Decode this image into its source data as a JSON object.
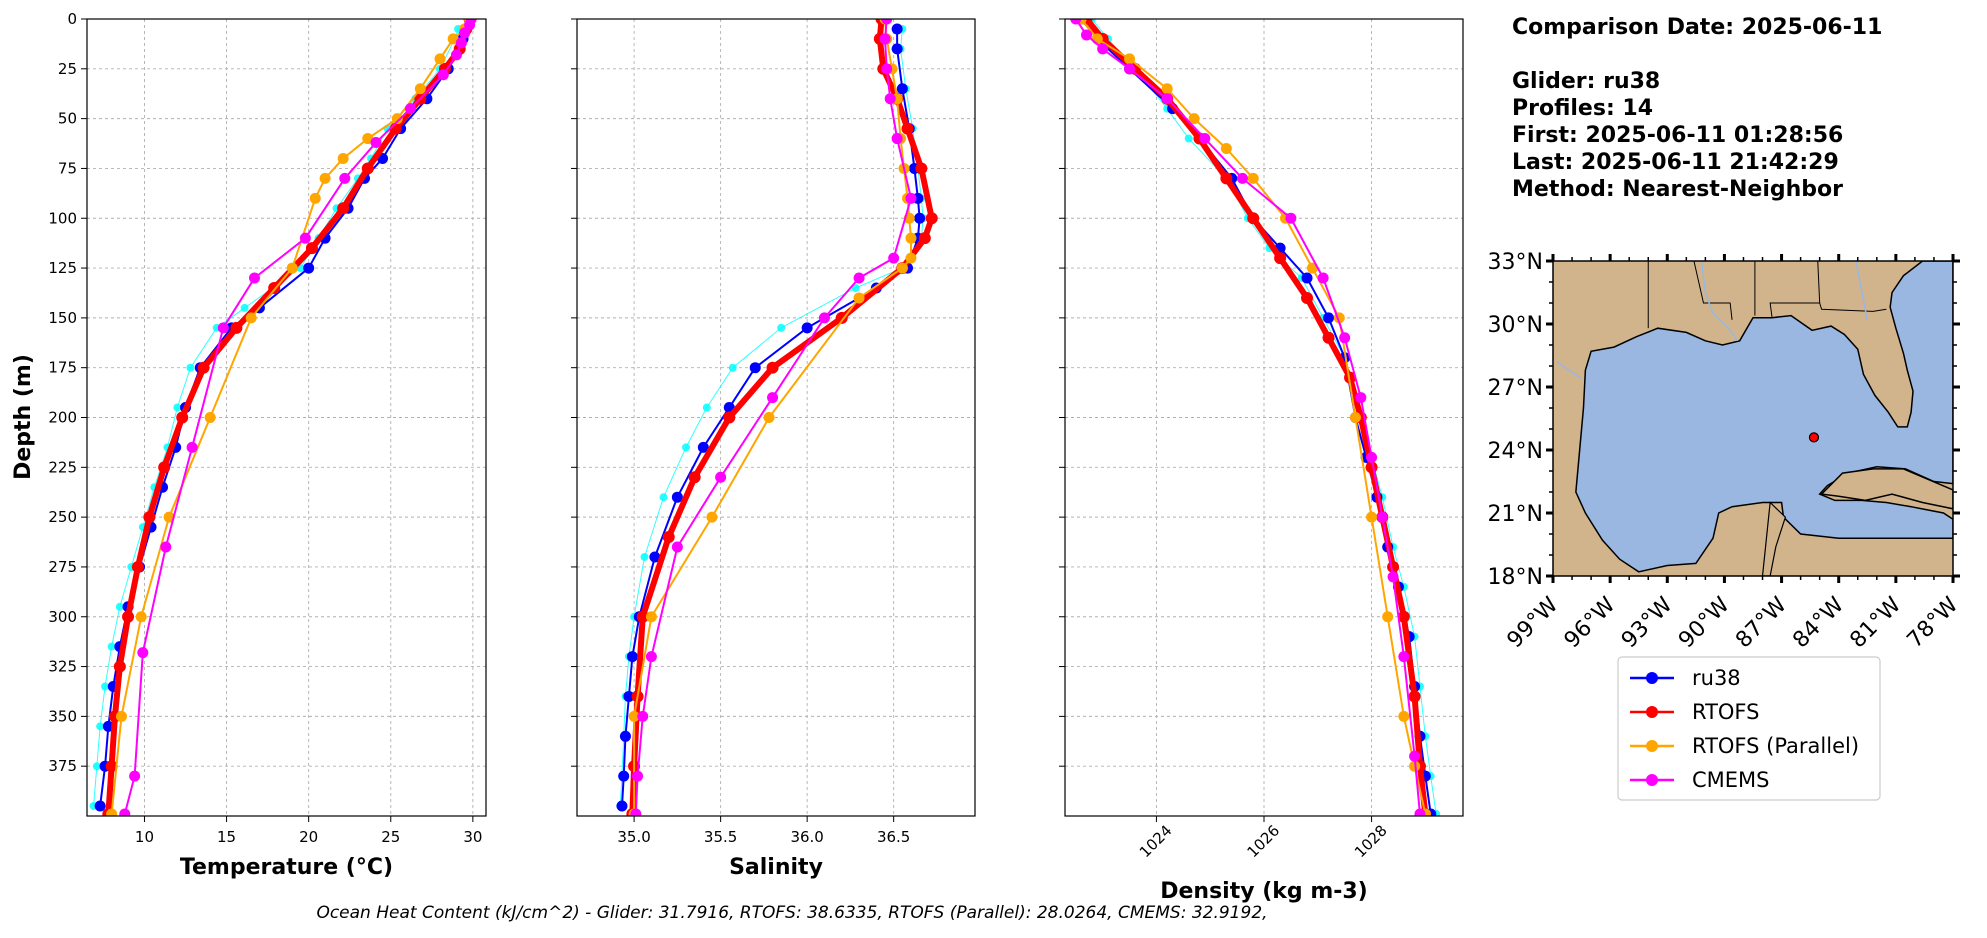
{
  "info": {
    "comparison_date": "Comparison Date: 2025-06-11",
    "glider": "Glider: ru38",
    "profiles": "Profiles: 14",
    "first": "First: 2025-06-11 01:28:56",
    "last": "Last: 2025-06-11 21:42:29",
    "method": "Method: Nearest-Neighbor"
  },
  "footer": "Ocean Heat Content (kJ/cm^2) - Glider: 31.7916,  RTOFS: 38.6335,  RTOFS (Parallel): 28.0264,  CMEMS: 32.9192,",
  "legend": [
    {
      "label": "ru38",
      "color": "#0000ff"
    },
    {
      "label": "RTOFS",
      "color": "#ff0000"
    },
    {
      "label": "RTOFS (Parallel)",
      "color": "#ffa500"
    },
    {
      "label": "CMEMS",
      "color": "#ff00ff"
    }
  ],
  "chart_data": [
    {
      "type": "line",
      "xlabel": "Temperature (°C)",
      "ylabel": "Depth (m)",
      "xlim": [
        6.5,
        30.8
      ],
      "ylim": [
        400,
        0
      ],
      "xticks": [
        "10",
        "15",
        "20",
        "25",
        "30"
      ],
      "yticks": [
        "0",
        "25",
        "50",
        "75",
        "100",
        "125",
        "150",
        "175",
        "200",
        "225",
        "250",
        "275",
        "300",
        "325",
        "350",
        "375"
      ],
      "grid": true,
      "series": [
        {
          "name": "ru38",
          "color": "#0000ff",
          "x": [
            29.6,
            29.4,
            28.5,
            27.2,
            25.6,
            24.5,
            23.4,
            22.4,
            21.0,
            20.0,
            17.0,
            15.3,
            13.4,
            12.5,
            11.9,
            11.1,
            10.4,
            9.7,
            9.0,
            8.5,
            8.1,
            7.8,
            7.6,
            7.3
          ],
          "y": [
            5,
            10,
            25,
            40,
            55,
            70,
            80,
            95,
            110,
            125,
            145,
            155,
            175,
            195,
            215,
            235,
            255,
            275,
            295,
            315,
            335,
            355,
            375,
            395
          ]
        },
        {
          "name": "RTOFS",
          "color": "#ff0000",
          "x": [
            29.8,
            29.6,
            29.2,
            28.3,
            26.8,
            25.3,
            23.6,
            22.1,
            20.2,
            17.9,
            15.6,
            13.6,
            12.3,
            11.2,
            10.3,
            9.6,
            9.0,
            8.5,
            8.2,
            8.0,
            7.8
          ],
          "y": [
            0,
            5,
            15,
            25,
            40,
            55,
            75,
            95,
            115,
            135,
            155,
            175,
            200,
            225,
            250,
            275,
            300,
            325,
            350,
            375,
            399
          ]
        },
        {
          "name": "RTOFS (Parallel)",
          "color": "#ffa500",
          "x": [
            29.8,
            29.5,
            28.8,
            28.0,
            26.8,
            25.4,
            23.6,
            22.1,
            21.0,
            20.4,
            19.0,
            16.5,
            14.0,
            11.5,
            9.8,
            8.6,
            8.0
          ],
          "y": [
            0,
            5,
            10,
            20,
            35,
            50,
            60,
            70,
            80,
            90,
            125,
            150,
            200,
            250,
            300,
            350,
            399
          ]
        },
        {
          "name": "CMEMS",
          "color": "#ff00ff",
          "x": [
            29.9,
            29.8,
            29.5,
            29.3,
            29.0,
            28.2,
            26.2,
            24.1,
            22.2,
            19.8,
            16.7,
            14.8,
            12.9,
            11.3,
            9.9,
            9.4,
            8.8
          ],
          "y": [
            0,
            3,
            7,
            12,
            18,
            28,
            45,
            62,
            80,
            110,
            130,
            155,
            215,
            265,
            318,
            380,
            399
          ]
        },
        {
          "name": "",
          "color": "#00ffff",
          "x": [
            29.1,
            28.9,
            28.0,
            26.5,
            24.8,
            23.8,
            23.0,
            21.7,
            20.6,
            19.5,
            16.1,
            14.4,
            12.8,
            12.0,
            11.4,
            10.6,
            9.9,
            9.2,
            8.5,
            8.0,
            7.6,
            7.3,
            7.1,
            6.9
          ],
          "y": [
            5,
            10,
            25,
            40,
            55,
            70,
            80,
            95,
            110,
            125,
            145,
            155,
            175,
            195,
            215,
            235,
            255,
            275,
            295,
            315,
            335,
            355,
            375,
            395
          ]
        }
      ]
    },
    {
      "type": "line",
      "xlabel": "Salinity",
      "xlim": [
        34.67,
        36.97
      ],
      "ylim": [
        400,
        0
      ],
      "xticks": [
        "35.0",
        "35.5",
        "36.0",
        "36.5"
      ],
      "grid": true,
      "series": [
        {
          "name": "ru38",
          "color": "#0000ff",
          "x": [
            36.52,
            36.52,
            36.55,
            36.59,
            36.62,
            36.64,
            36.65,
            36.64,
            36.58,
            36.4,
            36.0,
            35.7,
            35.55,
            35.4,
            35.25,
            35.12,
            35.03,
            34.99,
            34.97,
            34.95,
            34.94,
            34.93
          ],
          "y": [
            5,
            15,
            35,
            55,
            75,
            90,
            100,
            110,
            125,
            135,
            155,
            175,
            195,
            215,
            240,
            270,
            300,
            320,
            340,
            360,
            380,
            395
          ]
        },
        {
          "name": "RTOFS",
          "color": "#ff0000",
          "x": [
            36.43,
            36.42,
            36.44,
            36.52,
            36.58,
            36.66,
            36.72,
            36.68,
            36.55,
            36.2,
            35.8,
            35.55,
            35.35,
            35.2,
            35.05,
            35.02,
            35.0,
            34.99
          ],
          "y": [
            0,
            10,
            25,
            40,
            55,
            75,
            100,
            110,
            125,
            150,
            175,
            200,
            230,
            260,
            300,
            340,
            375,
            399
          ]
        },
        {
          "name": "RTOFS (Parallel)",
          "color": "#ffa500",
          "x": [
            36.45,
            36.46,
            36.49,
            36.52,
            36.54,
            36.56,
            36.58,
            36.59,
            36.6,
            36.6,
            36.55,
            36.3,
            35.78,
            35.45,
            35.1,
            35.0,
            35.0
          ],
          "y": [
            0,
            10,
            25,
            40,
            60,
            75,
            90,
            100,
            110,
            120,
            125,
            140,
            200,
            250,
            300,
            350,
            399
          ]
        },
        {
          "name": "CMEMS",
          "color": "#ff00ff",
          "x": [
            36.46,
            36.45,
            36.46,
            36.48,
            36.52,
            36.6,
            36.5,
            36.3,
            36.1,
            35.8,
            35.5,
            35.25,
            35.1,
            35.05,
            35.02,
            35.01
          ],
          "y": [
            0,
            10,
            25,
            40,
            60,
            90,
            120,
            130,
            150,
            190,
            230,
            265,
            320,
            350,
            380,
            399
          ]
        },
        {
          "name": "",
          "color": "#00ffff",
          "x": [
            36.55,
            36.54,
            36.57,
            36.61,
            36.64,
            36.66,
            36.67,
            36.66,
            36.55,
            36.28,
            35.85,
            35.57,
            35.42,
            35.3,
            35.17,
            35.06,
            35.0,
            34.97,
            34.95,
            34.94,
            34.93,
            34.92
          ],
          "y": [
            5,
            15,
            35,
            55,
            75,
            90,
            100,
            110,
            125,
            135,
            155,
            175,
            195,
            215,
            240,
            270,
            300,
            320,
            340,
            360,
            380,
            395
          ]
        }
      ]
    },
    {
      "type": "line",
      "xlabel": "Density (kg m-3)",
      "xlim": [
        1022.3,
        1029.7
      ],
      "ylim": [
        400,
        0
      ],
      "xticks": [
        "1024",
        "1026",
        "1028"
      ],
      "grid": true,
      "series": [
        {
          "name": "ru38",
          "color": "#0000ff",
          "x": [
            1022.6,
            1022.9,
            1023.5,
            1024.3,
            1024.8,
            1025.4,
            1025.8,
            1026.3,
            1026.8,
            1027.2,
            1027.5,
            1027.7,
            1027.9,
            1028.1,
            1028.3,
            1028.5,
            1028.7,
            1028.8,
            1028.9,
            1029.0,
            1029.1
          ],
          "y": [
            0,
            10,
            25,
            45,
            60,
            80,
            100,
            115,
            130,
            150,
            170,
            200,
            220,
            240,
            265,
            285,
            310,
            335,
            360,
            380,
            399
          ]
        },
        {
          "name": "RTOFS",
          "color": "#ff0000",
          "x": [
            1022.7,
            1023.0,
            1023.6,
            1024.2,
            1024.8,
            1025.3,
            1025.8,
            1026.3,
            1026.8,
            1027.2,
            1027.6,
            1027.8,
            1028.0,
            1028.2,
            1028.4,
            1028.6,
            1028.8,
            1028.9,
            1029.0
          ],
          "y": [
            0,
            10,
            25,
            40,
            60,
            80,
            100,
            120,
            140,
            160,
            180,
            200,
            225,
            250,
            275,
            300,
            340,
            375,
            399
          ]
        },
        {
          "name": "RTOFS (Parallel)",
          "color": "#ffa500",
          "x": [
            1022.6,
            1022.9,
            1023.5,
            1024.2,
            1024.7,
            1025.3,
            1025.8,
            1026.4,
            1026.9,
            1027.4,
            1027.7,
            1028.0,
            1028.3,
            1028.6,
            1028.8,
            1029.0
          ],
          "y": [
            0,
            10,
            20,
            35,
            50,
            65,
            80,
            100,
            125,
            150,
            200,
            250,
            300,
            350,
            375,
            399
          ]
        },
        {
          "name": "CMEMS",
          "color": "#ff00ff",
          "x": [
            1022.5,
            1022.7,
            1023.0,
            1023.5,
            1024.2,
            1024.9,
            1025.6,
            1026.5,
            1027.1,
            1027.5,
            1027.8,
            1028.0,
            1028.2,
            1028.4,
            1028.6,
            1028.8,
            1028.9
          ],
          "y": [
            0,
            8,
            15,
            25,
            40,
            60,
            80,
            100,
            130,
            160,
            190,
            220,
            250,
            280,
            320,
            370,
            399
          ]
        },
        {
          "name": "",
          "color": "#00ffff",
          "x": [
            1022.8,
            1023.1,
            1023.6,
            1024.2,
            1024.6,
            1025.3,
            1025.7,
            1026.1,
            1026.7,
            1027.1,
            1027.5,
            1027.8,
            1028.0,
            1028.2,
            1028.4,
            1028.6,
            1028.8,
            1028.9,
            1029.0,
            1029.1,
            1029.2
          ],
          "y": [
            0,
            10,
            25,
            45,
            60,
            80,
            100,
            115,
            130,
            150,
            170,
            200,
            220,
            240,
            265,
            285,
            310,
            335,
            360,
            380,
            399
          ]
        }
      ]
    }
  ],
  "map": {
    "lat_ticks": [
      "33°N",
      "30°N",
      "27°N",
      "24°N",
      "21°N",
      "18°N"
    ],
    "lon_ticks": [
      "99°W",
      "96°W",
      "93°W",
      "90°W",
      "87°W",
      "84°W",
      "81°W",
      "78°W"
    ],
    "extent": {
      "lon": [
        -99,
        -78
      ],
      "lat": [
        18,
        33
      ]
    },
    "land_color": "#d2b48c",
    "ocean_color": "#99b7e1",
    "glider_position": {
      "lon": -85.3,
      "lat": 24.6
    }
  }
}
